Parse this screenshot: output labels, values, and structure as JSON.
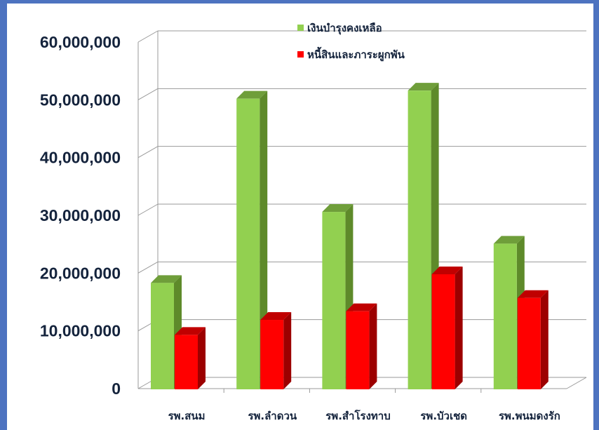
{
  "chart_data": {
    "type": "bar",
    "categories": [
      "รพ.สนม",
      "รพ.ลำดวน",
      "รพ.สำโรงทาบ",
      "รพ.บัวเชด",
      "รพ.พนมดงรัก"
    ],
    "series": [
      {
        "name": "เงินบำรุงคงเหลือ",
        "color": "#92d050",
        "side_color": "#5e8a2a",
        "top_color": "#6f9e3a",
        "values": [
          18300000,
          50200000,
          30600000,
          51600000,
          25100000
        ]
      },
      {
        "name": "หนี้สินและภาระผูกพัน",
        "color": "#ff0000",
        "side_color": "#9c0000",
        "top_color": "#c00000",
        "values": [
          9300000,
          11900000,
          13400000,
          19800000,
          15700000
        ]
      }
    ],
    "y_tick_labels": [
      "0",
      "10,000,000",
      "20,000,000",
      "30,000,000",
      "40,000,000",
      "50,000,000",
      "60,000,000"
    ],
    "ylim": [
      0,
      60000000
    ],
    "grid": true,
    "legend_position": "top-right",
    "title": "",
    "xlabel": "",
    "ylabel": ""
  }
}
